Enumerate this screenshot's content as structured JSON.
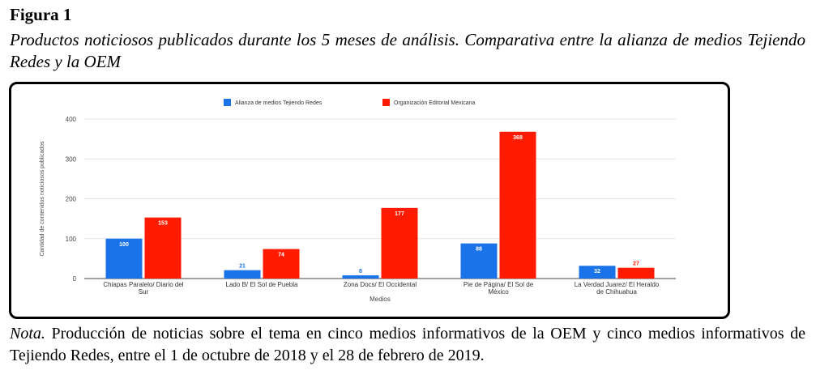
{
  "figure": {
    "label": "Figura 1",
    "title": "Productos noticiosos publicados durante los 5 meses de análisis. Comparativa entre la alianza de medios Tejiendo Redes y la OEM"
  },
  "note": {
    "prefix": "Nota.",
    "text": " Producción de noticias sobre el tema en cinco medios informativos de la OEM y cinco medios informativos de Tejiendo Redes, entre el 1 de octubre de 2018 y el 28 de febrero de 2019."
  },
  "chart_data": {
    "type": "bar",
    "categories": [
      [
        "Chiapas Paralelo/ Diario del",
        "Sur"
      ],
      [
        "Lado B/ El Sol de Puebla"
      ],
      [
        "Zona Docs/ El Occidental"
      ],
      [
        "Pie de Página/ El Sol de",
        "México"
      ],
      [
        "La Verdad Juarez/ El Heraldo",
        "de Chihuahua"
      ]
    ],
    "series": [
      {
        "name": "Alianza de medios Tejiendo Redes",
        "color": "#1a73e8",
        "values": [
          100,
          21,
          8,
          88,
          32
        ]
      },
      {
        "name": "Organización Editorial Mexicana",
        "color": "#ff1a00",
        "values": [
          153,
          74,
          177,
          368,
          27
        ]
      }
    ],
    "xlabel": "Medios",
    "ylabel": "Cantidad de contenidos noticiosos publicados",
    "ylim": [
      0,
      400
    ],
    "yticks": [
      0,
      100,
      200,
      300,
      400
    ],
    "grid": true,
    "legend": "top-center"
  }
}
